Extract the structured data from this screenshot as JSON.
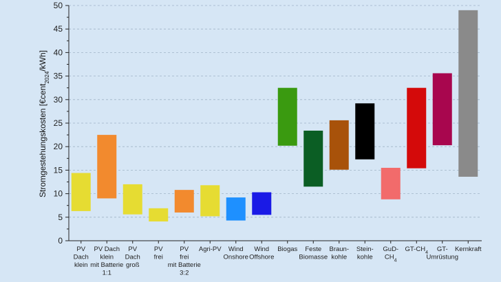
{
  "chart_data": {
    "type": "floating-bar",
    "title": "",
    "ylabel": "Stromgestehungskosten [€cent2024/kWh]",
    "xlabel": "",
    "ylim": [
      0,
      50
    ],
    "yticks": [
      0,
      5,
      10,
      15,
      20,
      25,
      30,
      35,
      40,
      45,
      50
    ],
    "grid": "horizontal-dashed",
    "categories": [
      {
        "lines": [
          "PV",
          "Dach",
          "klein"
        ],
        "low": 6.3,
        "high": 14.4,
        "color": "#e6dc32"
      },
      {
        "lines": [
          "PV Dach",
          "klein",
          "mit Batterie",
          "1:1"
        ],
        "low": 9.0,
        "high": 22.5,
        "color": "#f28a2e"
      },
      {
        "lines": [
          "PV",
          "Dach",
          "groß"
        ],
        "low": 5.6,
        "high": 12.0,
        "color": "#e6dc32"
      },
      {
        "lines": [
          "PV",
          "frei"
        ],
        "low": 4.1,
        "high": 6.9,
        "color": "#e6dc32"
      },
      {
        "lines": [
          "PV",
          "frei",
          "mit Batterie",
          "3:2"
        ],
        "low": 6.0,
        "high": 10.8,
        "color": "#f28a2e"
      },
      {
        "lines": [
          "Agri-PV"
        ],
        "low": 5.2,
        "high": 11.8,
        "color": "#e6dc32"
      },
      {
        "lines": [
          "Wind",
          "Onshore"
        ],
        "low": 4.3,
        "high": 9.2,
        "color": "#1e90ff"
      },
      {
        "lines": [
          "Wind",
          "Offshore"
        ],
        "low": 5.5,
        "high": 10.3,
        "color": "#1a1ae6"
      },
      {
        "lines": [
          "Biogas"
        ],
        "low": 20.2,
        "high": 32.5,
        "color": "#3a9a10"
      },
      {
        "lines": [
          "Feste",
          "Biomasse"
        ],
        "low": 11.5,
        "high": 23.4,
        "color": "#0b5e24"
      },
      {
        "lines": [
          "Braun-",
          "kohle"
        ],
        "low": 15.1,
        "high": 25.6,
        "color": "#a8520a"
      },
      {
        "lines": [
          "Stein-",
          "kohle"
        ],
        "low": 17.3,
        "high": 29.2,
        "color": "#000000"
      },
      {
        "lines": [
          "GuD-",
          "CH4"
        ],
        "low": 8.8,
        "high": 15.5,
        "color": "#f26b6b"
      },
      {
        "lines": [
          "GT-CH4"
        ],
        "low": 15.4,
        "high": 32.5,
        "color": "#d40a0a"
      },
      {
        "lines": [
          "GT-",
          "Umrüstung"
        ],
        "low": 20.3,
        "high": 35.6,
        "color": "#a8064e"
      },
      {
        "lines": [
          "Kernkraft"
        ],
        "low": 13.6,
        "high": 49.0,
        "color": "#8a8a8a"
      }
    ]
  }
}
